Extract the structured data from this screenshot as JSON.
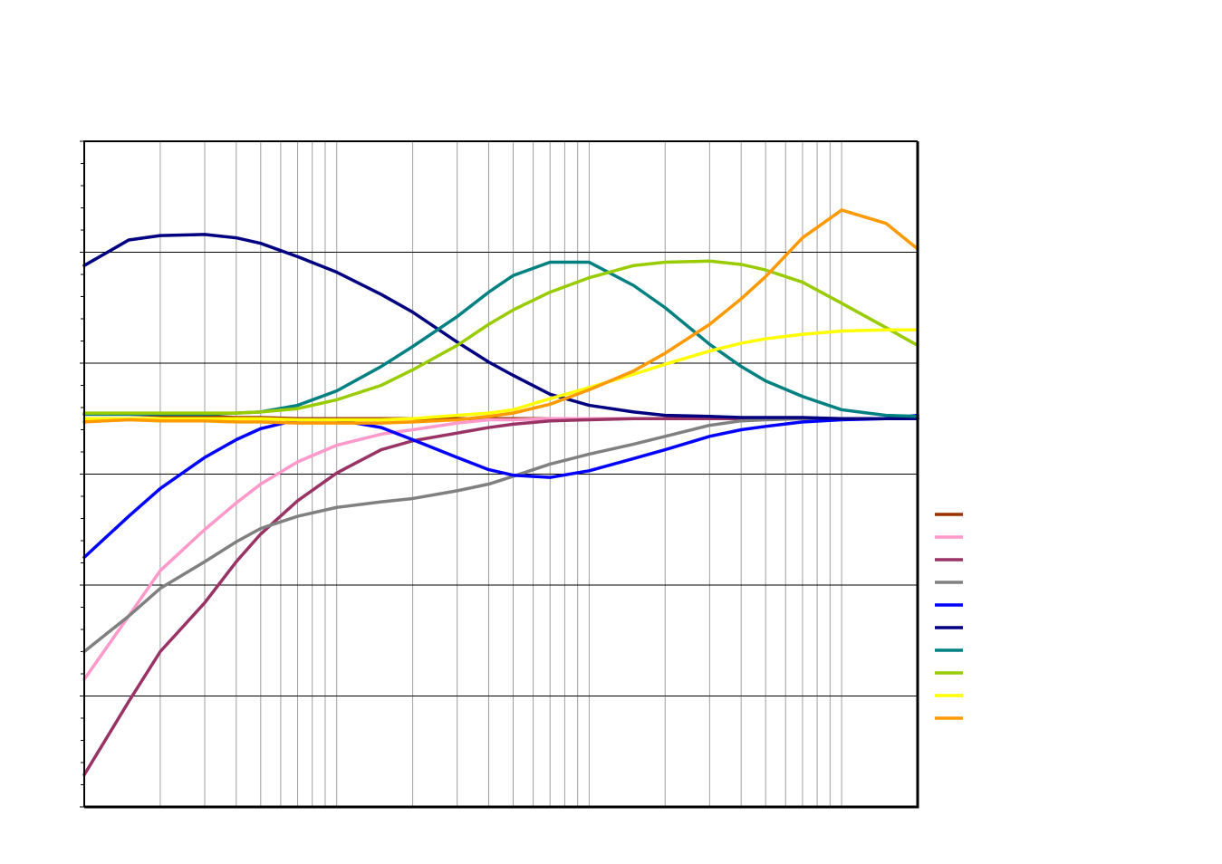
{
  "chart_data": {
    "type": "line",
    "x": [
      0.1,
      0.15,
      0.2,
      0.3,
      0.4,
      0.5,
      0.7,
      1,
      1.5,
      2,
      3,
      4,
      5,
      7,
      10,
      15,
      20,
      30,
      40,
      50,
      70,
      100,
      150,
      200
    ],
    "xscale": "log",
    "xlim": [
      0.1,
      200
    ],
    "xticks": [
      0.2,
      0.3,
      0.4,
      0.5,
      0.6,
      0.7,
      0.8,
      0.9,
      1,
      2,
      3,
      4,
      5,
      6,
      7,
      8,
      9,
      10,
      20,
      30,
      40,
      50,
      60,
      70,
      80,
      90,
      100
    ],
    "ylim": [
      0,
      60
    ],
    "yticks": [
      0,
      10,
      20,
      30,
      40,
      50,
      60
    ],
    "yminorticks": [
      2,
      4,
      6,
      8,
      12,
      14,
      16,
      18,
      22,
      24,
      26,
      28,
      32,
      34,
      36,
      38,
      42,
      44,
      46,
      48,
      52,
      54,
      56,
      58
    ],
    "grid": true,
    "legend": "right",
    "series": [
      {
        "color": "#993300",
        "values": [
          35.4,
          35.4,
          35.3,
          35.2,
          35.1,
          35.1,
          35,
          35,
          35,
          35,
          35,
          35,
          35,
          35,
          35,
          35,
          35,
          35,
          35,
          35,
          35,
          35,
          35,
          35
        ]
      },
      {
        "color": "#ff99cc",
        "values": [
          11.5,
          17.2,
          21.3,
          25,
          27.4,
          29.1,
          31.1,
          32.6,
          33.6,
          34,
          34.6,
          34.9,
          34.9,
          35,
          35,
          35,
          35,
          35,
          35,
          35,
          35,
          35,
          35,
          35
        ]
      },
      {
        "color": "#993366",
        "values": [
          2.9,
          9.5,
          14,
          18.4,
          22.1,
          24.6,
          27.6,
          30.1,
          32.2,
          33,
          33.7,
          34.2,
          34.5,
          34.8,
          34.9,
          35,
          35,
          35,
          35,
          35,
          35,
          35,
          35,
          35
        ]
      },
      {
        "color": "#808080",
        "values": [
          14,
          17.2,
          19.7,
          22.1,
          23.9,
          25.1,
          26.2,
          27,
          27.5,
          27.8,
          28.5,
          29.1,
          29.8,
          30.9,
          31.8,
          32.7,
          33.4,
          34.4,
          34.8,
          34.9,
          35,
          35,
          35,
          35
        ]
      },
      {
        "color": "#0000ff",
        "values": [
          22.5,
          26.2,
          28.7,
          31.5,
          33.1,
          34.1,
          34.9,
          34.9,
          34.2,
          33.1,
          31.5,
          30.4,
          29.9,
          29.7,
          30.3,
          31.4,
          32.2,
          33.4,
          34,
          34.3,
          34.7,
          34.9,
          35,
          35.3
        ]
      },
      {
        "color": "#000080",
        "values": [
          48.8,
          51.1,
          51.5,
          51.6,
          51.3,
          50.8,
          49.6,
          48.2,
          46.2,
          44.6,
          41.9,
          40.1,
          38.9,
          37.2,
          36.2,
          35.6,
          35.3,
          35.2,
          35.1,
          35.1,
          35.1,
          35,
          35,
          35
        ]
      },
      {
        "color": "#008080",
        "values": [
          35.4,
          35.4,
          35.4,
          35.4,
          35.5,
          35.6,
          36.2,
          37.5,
          39.7,
          41.5,
          44.2,
          46.4,
          47.9,
          49.1,
          49.1,
          47,
          45,
          41.7,
          39.7,
          38.4,
          37,
          35.8,
          35.3,
          35.2
        ]
      },
      {
        "color": "#99cc00",
        "values": [
          35.5,
          35.5,
          35.5,
          35.5,
          35.5,
          35.6,
          35.9,
          36.7,
          38,
          39.4,
          41.6,
          43.5,
          44.8,
          46.4,
          47.7,
          48.8,
          49.1,
          49.2,
          48.9,
          48.4,
          47.3,
          45.4,
          43.2,
          41.6
        ]
      },
      {
        "color": "#ffff00",
        "values": [
          35,
          35,
          35,
          35,
          35,
          35,
          34.9,
          34.9,
          34.9,
          35,
          35.3,
          35.5,
          35.8,
          36.8,
          37.8,
          39,
          39.9,
          41.1,
          41.8,
          42.2,
          42.6,
          42.9,
          43,
          43
        ]
      },
      {
        "color": "#ff9900",
        "values": [
          34.7,
          34.9,
          34.8,
          34.8,
          34.7,
          34.7,
          34.6,
          34.6,
          34.6,
          34.7,
          34.9,
          35.2,
          35.5,
          36.3,
          37.6,
          39.3,
          40.9,
          43.5,
          45.8,
          47.8,
          51.3,
          53.8,
          52.6,
          50.3
        ]
      }
    ]
  }
}
